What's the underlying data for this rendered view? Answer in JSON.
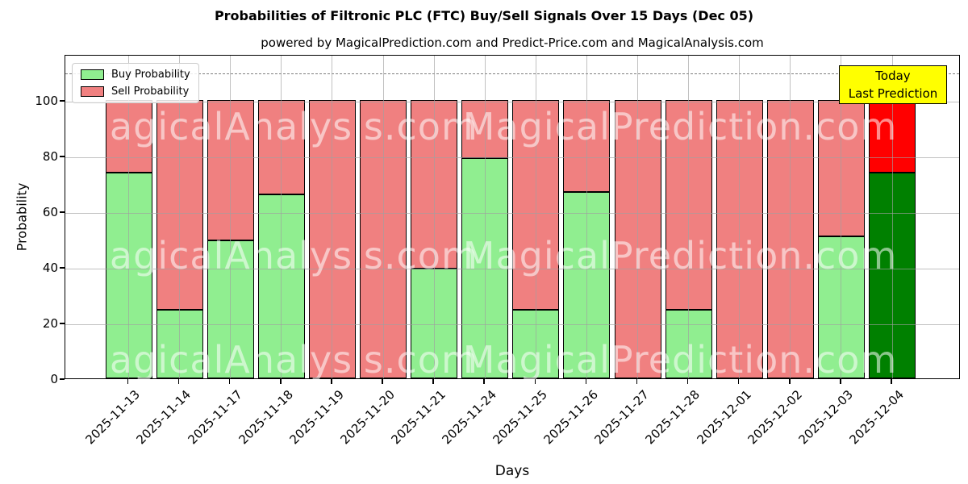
{
  "today_box": {
    "lines": [
      "Today",
      "Last Prediction"
    ],
    "bg": "#ffff00"
  },
  "watermarks": {
    "left": "MagicalAnalysis.com",
    "right": "MagicalPrediction.com"
  },
  "chart_data": {
    "type": "bar",
    "stacked": true,
    "title": "Probabilities of Filtronic PLC (FTC) Buy/Sell Signals Over 15 Days (Dec 05)",
    "subtitle": "powered by MagicalPrediction.com and Predict-Price.com and MagicalAnalysis.com",
    "xlabel": "Days",
    "ylabel": "Probability",
    "categories": [
      "2025-11-13",
      "2025-11-14",
      "2025-11-17",
      "2025-11-18",
      "2025-11-19",
      "2025-11-20",
      "2025-11-21",
      "2025-11-24",
      "2025-11-25",
      "2025-11-26",
      "2025-11-27",
      "2025-11-28",
      "2025-12-01",
      "2025-12-02",
      "2025-12-03",
      "2025-12-04"
    ],
    "series": [
      {
        "name": "Buy Probability",
        "color": "#90ee90",
        "values": [
          74,
          24.5,
          49.5,
          66,
          0,
          0,
          39.5,
          79,
          24.5,
          67,
          0,
          24.5,
          0,
          0,
          51,
          74
        ]
      },
      {
        "name": "Sell Probability",
        "color": "#f08080",
        "values": [
          26,
          75.5,
          50.5,
          34,
          100,
          100,
          60.5,
          21,
          75.5,
          33,
          100,
          75.5,
          100,
          100,
          49,
          26
        ]
      }
    ],
    "today_colors": {
      "buy": "#008000",
      "sell": "#ff0000"
    },
    "yticks": [
      0,
      20,
      40,
      60,
      80,
      100
    ],
    "ylim": [
      0,
      116.5
    ],
    "dashed_line_y": 110,
    "grid": true,
    "legend_position": "upper left"
  }
}
